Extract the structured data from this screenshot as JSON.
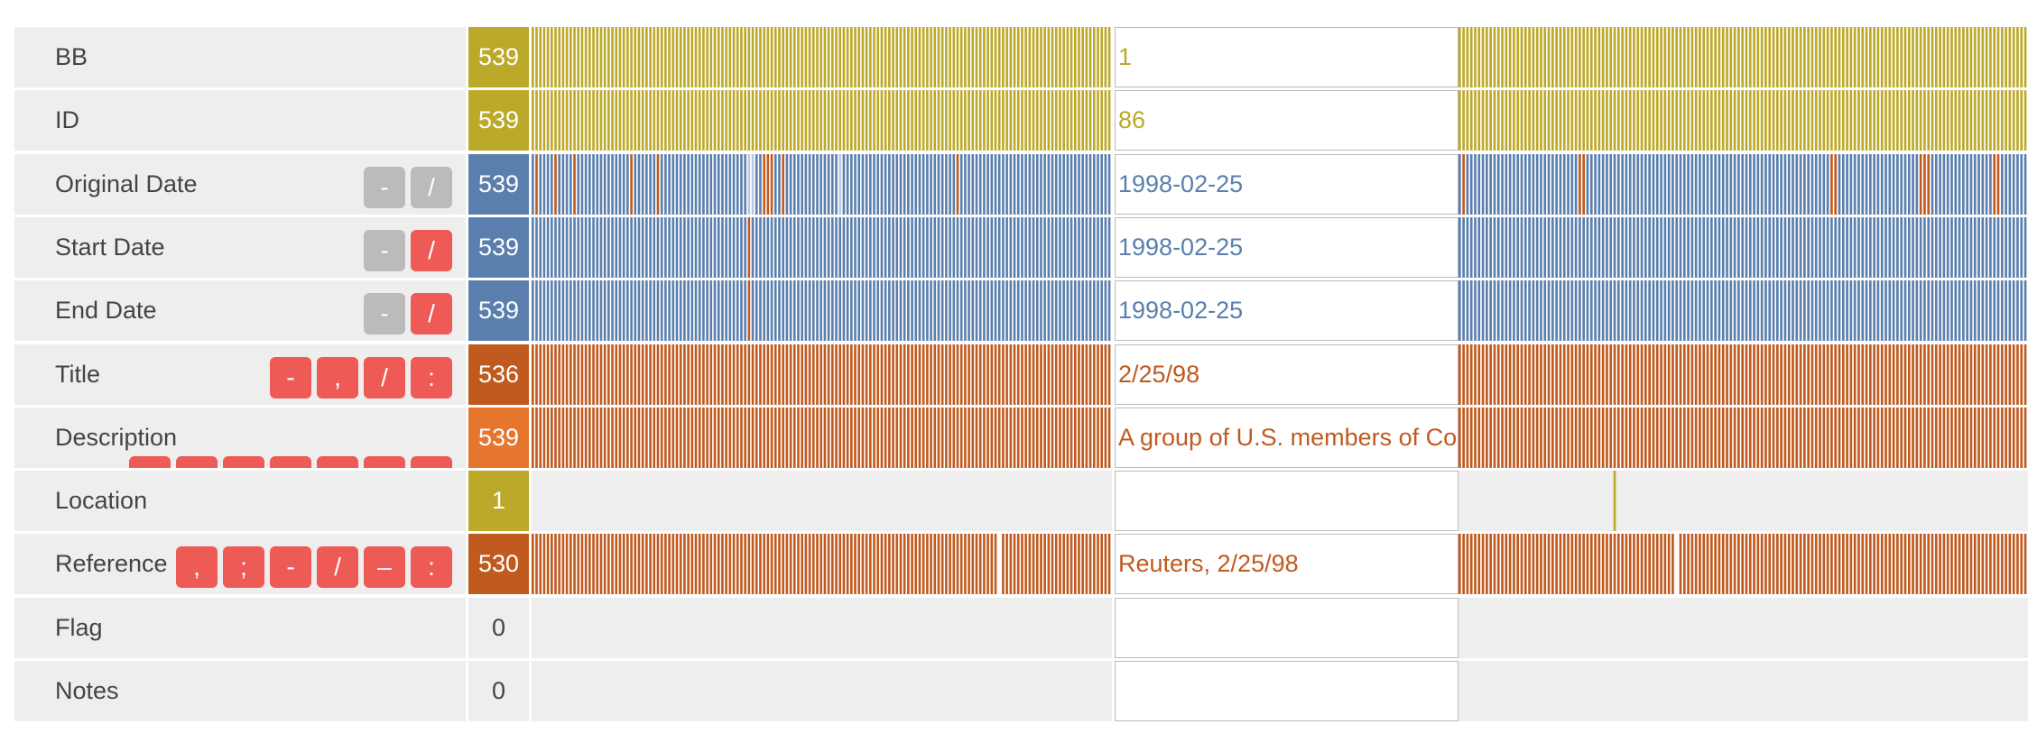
{
  "colors": {
    "olive": "#bca92a",
    "blue": "#5a7fae",
    "orange": "#c05a1f",
    "orange_light": "#e6752e",
    "pale_blue": "#b8c9e0",
    "button_active": "#ee5a55",
    "button_inactive": "#bbbbbb",
    "row_background": "#eeeeee",
    "label_text": "#444444"
  },
  "rows": [
    {
      "label": "BB",
      "count": "539",
      "count_color": "olive",
      "value": "1",
      "value_color": "olive",
      "buttons": [],
      "bars": {
        "count": 153,
        "base": "olive",
        "gap_at": null,
        "marks": {}
      },
      "bars2": {
        "count": 147,
        "base": "olive",
        "gap_at": null,
        "marks": {}
      }
    },
    {
      "label": "ID",
      "count": "539",
      "count_color": "olive",
      "value": "86",
      "value_color": "olive",
      "buttons": [],
      "bars": {
        "count": 153,
        "base": "olive",
        "gap_at": null,
        "marks": {}
      },
      "bars2": {
        "count": 147,
        "base": "olive",
        "gap_at": null,
        "marks": {}
      }
    },
    {
      "label": "Original Date",
      "count": "539",
      "count_color": "blue",
      "value": "1998-02-25",
      "value_color": "blue",
      "buttons": [
        {
          "label": "-",
          "state": "inactive"
        },
        {
          "label": "/",
          "state": "inactive"
        }
      ],
      "bars": {
        "count": 153,
        "base": "blue",
        "gap_at": null,
        "marks": {
          "1": "orange",
          "6": "orange",
          "11": "orange",
          "26": "orange",
          "33": "orange",
          "57": "pale_blue",
          "58": "pale_blue",
          "61": "orange",
          "62": "orange",
          "63": "orange",
          "66": "orange",
          "81": "pale_blue",
          "112": "orange"
        }
      },
      "bars2": {
        "count": 147,
        "base": "blue",
        "gap_at": null,
        "marks": {
          "1": "orange",
          "31": "orange",
          "32": "orange",
          "96": "orange",
          "97": "orange",
          "119": "orange",
          "120": "orange",
          "121": "orange",
          "138": "orange",
          "139": "orange"
        }
      }
    },
    {
      "label": "Start Date",
      "count": "539",
      "count_color": "blue",
      "value": "1998-02-25",
      "value_color": "blue",
      "buttons": [
        {
          "label": "-",
          "state": "inactive"
        },
        {
          "label": "/",
          "state": "active"
        }
      ],
      "bars": {
        "count": 153,
        "base": "blue",
        "gap_at": null,
        "marks": {
          "57": "orange"
        }
      },
      "bars2": {
        "count": 147,
        "base": "blue",
        "gap_at": null,
        "marks": {}
      }
    },
    {
      "label": "End Date",
      "count": "539",
      "count_color": "blue",
      "value": "1998-02-25",
      "value_color": "blue",
      "buttons": [
        {
          "label": "-",
          "state": "inactive"
        },
        {
          "label": "/",
          "state": "active"
        }
      ],
      "bars": {
        "count": 153,
        "base": "blue",
        "gap_at": null,
        "marks": {
          "57": "orange"
        }
      },
      "bars2": {
        "count": 147,
        "base": "blue",
        "gap_at": null,
        "marks": {}
      }
    },
    {
      "label": "Title",
      "count": "536",
      "count_color": "orange",
      "value": "2/25/98",
      "value_color": "orange",
      "buttons": [
        {
          "label": "-",
          "state": "active"
        },
        {
          "label": ",",
          "state": "active"
        },
        {
          "label": "/",
          "state": "active"
        },
        {
          "label": ":",
          "state": "active"
        }
      ],
      "bars": {
        "count": 153,
        "base": "orange",
        "gap_at": null,
        "marks": {}
      },
      "bars2": {
        "count": 147,
        "base": "orange",
        "gap_at": null,
        "marks": {}
      }
    },
    {
      "label": "Description",
      "count": "539",
      "count_color": "orange_light",
      "value": "A group of U.S. members of Co",
      "value_color": "orange",
      "buttons": [
        {
          "label": "",
          "state": "active"
        },
        {
          "label": "",
          "state": "active"
        },
        {
          "label": "",
          "state": "active"
        },
        {
          "label": "",
          "state": "active"
        },
        {
          "label": "",
          "state": "active"
        },
        {
          "label": "",
          "state": "active"
        },
        {
          "label": "",
          "state": "active"
        }
      ],
      "bars": {
        "count": 153,
        "base": "orange",
        "gap_at": null,
        "marks": {}
      },
      "bars2": {
        "count": 147,
        "base": "orange",
        "gap_at": null,
        "marks": {}
      }
    },
    {
      "label": "Location",
      "count": "1",
      "count_color": "olive",
      "value": "",
      "value_color": "olive",
      "buttons": [],
      "bars": {
        "count": 0,
        "base": "olive",
        "gap_at": null,
        "marks": {}
      },
      "bars2": {
        "count": 147,
        "base": "none",
        "gap_at": null,
        "marks": {
          "40": "olive"
        }
      }
    },
    {
      "label": "Reference",
      "count": "530",
      "count_color": "orange",
      "value": "Reuters, 2/25/98",
      "value_color": "orange",
      "buttons": [
        {
          "label": ",",
          "state": "active"
        },
        {
          "label": ";",
          "state": "active"
        },
        {
          "label": "-",
          "state": "active"
        },
        {
          "label": "/",
          "state": "active"
        },
        {
          "label": "–",
          "state": "active"
        },
        {
          "label": ":",
          "state": "active"
        }
      ],
      "bars": {
        "count": 153,
        "base": "orange",
        "gap_at": 123,
        "marks": {}
      },
      "bars2": {
        "count": 147,
        "base": "orange",
        "gap_at": 56,
        "marks": {}
      }
    },
    {
      "label": "Flag",
      "count": "0",
      "count_color": "empty",
      "value": "",
      "value_color": "olive",
      "buttons": [],
      "bars": {
        "count": 0,
        "base": "none",
        "gap_at": null,
        "marks": {}
      },
      "bars2": {
        "count": 0,
        "base": "none",
        "gap_at": null,
        "marks": {}
      }
    },
    {
      "label": "Notes",
      "count": "0",
      "count_color": "empty",
      "value": "",
      "value_color": "olive",
      "buttons": [],
      "bars": {
        "count": 0,
        "base": "none",
        "gap_at": null,
        "marks": {}
      },
      "bars2": {
        "count": 0,
        "base": "none",
        "gap_at": null,
        "marks": {}
      }
    }
  ]
}
